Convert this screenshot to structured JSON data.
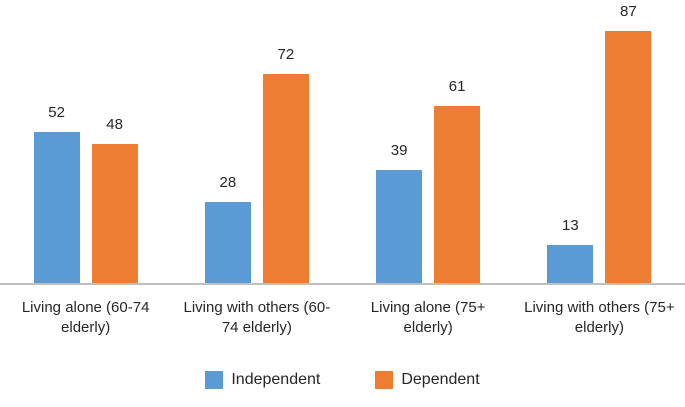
{
  "chart_data": {
    "type": "bar",
    "title": "",
    "categories": [
      "Living alone (60-74 elderly)",
      "Living with others (60-74 elderly)",
      "Living alone (75+ elderly)",
      "Living with others (75+ elderly)"
    ],
    "series": [
      {
        "name": "Independent",
        "color": "#5B9BD5",
        "values": [
          52,
          28,
          39,
          13
        ]
      },
      {
        "name": "Dependent",
        "color": "#ED7D31",
        "values": [
          48,
          72,
          61,
          87
        ]
      }
    ],
    "ylim": [
      0,
      100
    ],
    "grid": false,
    "y_axis_visible": false,
    "data_labels": true,
    "legend_position": "bottom",
    "axis_line_color": "#BFBFBF",
    "text_color": "#262626"
  }
}
